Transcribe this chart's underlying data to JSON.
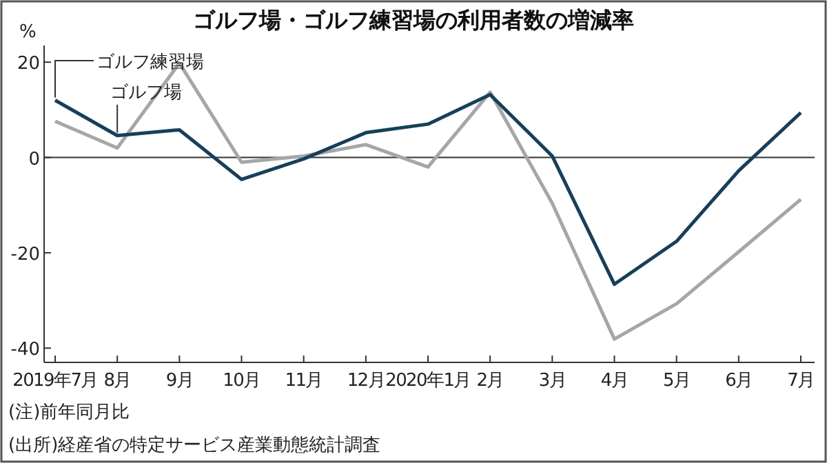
{
  "chart_data": {
    "type": "line",
    "title": "ゴルフ場・ゴルフ練習場の利用者数の増減率",
    "ylabel": "%",
    "categories": [
      "2019年7月",
      "8月",
      "9月",
      "10月",
      "11月",
      "12月",
      "2020年1月",
      "2月",
      "3月",
      "4月",
      "5月",
      "6月",
      "7月"
    ],
    "series": [
      {
        "name": "ゴルフ練習場",
        "color": "#173f5a",
        "values": [
          12,
          4.6,
          5.8,
          -4.6,
          -0.3,
          5.2,
          7,
          13.2,
          0.3,
          -26.6,
          -17.6,
          -2.8,
          9.4
        ]
      },
      {
        "name": "ゴルフ場",
        "color": "#a6a6a6",
        "values": [
          7.6,
          2,
          19.8,
          -1,
          0.3,
          2.7,
          -2,
          13.7,
          -9.6,
          -38.1,
          -30.7,
          -19.8,
          -8.8
        ]
      }
    ],
    "ylim": [
      -43,
      23.5
    ],
    "yticks": [
      -40,
      -20,
      0,
      20
    ],
    "ref_lines": [
      {
        "axis": "y",
        "value": 0,
        "color": "#333333"
      }
    ],
    "annotations": [
      "(注)前年同月比",
      "(出所)経産省の特定サービス産業動態統計調査"
    ],
    "grid": false,
    "marker": "none",
    "line_style": "solid"
  }
}
